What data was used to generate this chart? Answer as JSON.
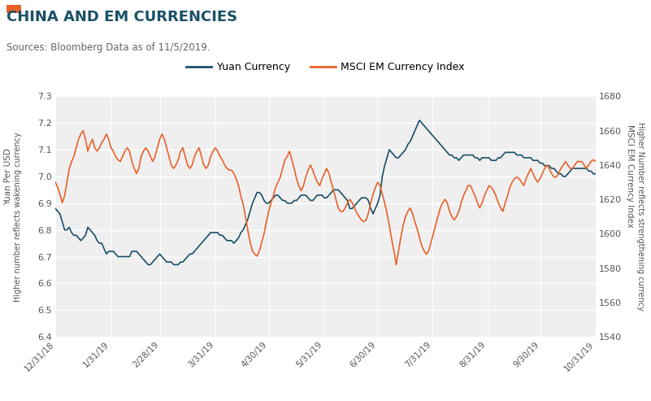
{
  "title": "CHINA AND EM CURRENCIES",
  "subtitle": "Sources: Bloomberg Data as of 11/5/2019.",
  "title_color": "#1a5068",
  "subtitle_color": "#666666",
  "accent_color": "#e8622a",
  "yuan_color": "#1a5068",
  "msci_color": "#e8622a",
  "yuan_label": "Yuan Currency",
  "msci_label": "MSCI EM Currency Index",
  "left_ylabel_top": "Yuan Per USD",
  "left_ylabel_bot": "Higher number reflects wakening currency",
  "right_ylabel_top": "MSCI EM Currency Index",
  "right_ylabel_bot": "Higher Number reflects strengthening currency",
  "ylim_left": [
    6.4,
    7.3
  ],
  "ylim_right": [
    1540,
    1680
  ],
  "yticks_left": [
    6.4,
    6.5,
    6.6,
    6.7,
    6.8,
    6.9,
    7.0,
    7.1,
    7.2,
    7.3
  ],
  "yticks_right": [
    1540,
    1560,
    1580,
    1600,
    1620,
    1640,
    1660,
    1680
  ],
  "xtick_labels": [
    "12/31/18",
    "1/31/19",
    "2/28/19",
    "3/31/19",
    "4/30/19",
    "5/31/19",
    "6/30/19",
    "7/31/19",
    "8/31/19",
    "9/30/19",
    "10/31/19"
  ],
  "plot_bg": "#efefef",
  "fig_bg": "#ffffff",
  "grid_color": "#ffffff",
  "yuan_data": [
    6.88,
    6.87,
    6.86,
    6.83,
    6.8,
    6.8,
    6.81,
    6.79,
    6.78,
    6.78,
    6.77,
    6.76,
    6.77,
    6.78,
    6.81,
    6.8,
    6.79,
    6.78,
    6.76,
    6.75,
    6.75,
    6.73,
    6.71,
    6.72,
    6.72,
    6.72,
    6.71,
    6.7,
    6.7,
    6.7,
    6.7,
    6.7,
    6.7,
    6.72,
    6.72,
    6.72,
    6.71,
    6.7,
    6.69,
    6.68,
    6.67,
    6.67,
    6.68,
    6.69,
    6.7,
    6.71,
    6.7,
    6.69,
    6.68,
    6.68,
    6.68,
    6.67,
    6.67,
    6.67,
    6.68,
    6.68,
    6.69,
    6.7,
    6.71,
    6.71,
    6.72,
    6.73,
    6.74,
    6.75,
    6.76,
    6.77,
    6.78,
    6.79,
    6.79,
    6.79,
    6.79,
    6.78,
    6.78,
    6.77,
    6.76,
    6.76,
    6.76,
    6.75,
    6.76,
    6.77,
    6.79,
    6.8,
    6.82,
    6.84,
    6.87,
    6.9,
    6.92,
    6.94,
    6.94,
    6.93,
    6.91,
    6.9,
    6.9,
    6.91,
    6.92,
    6.93,
    6.93,
    6.92,
    6.91,
    6.91,
    6.9,
    6.9,
    6.9,
    6.91,
    6.91,
    6.92,
    6.93,
    6.93,
    6.93,
    6.92,
    6.91,
    6.91,
    6.92,
    6.93,
    6.93,
    6.93,
    6.92,
    6.92,
    6.93,
    6.94,
    6.95,
    6.95,
    6.95,
    6.94,
    6.93,
    6.92,
    6.91,
    6.88,
    6.88,
    6.89,
    6.9,
    6.91,
    6.92,
    6.92,
    6.92,
    6.91,
    6.88,
    6.86,
    6.88,
    6.9,
    6.93,
    7.0,
    7.04,
    7.07,
    7.1,
    7.09,
    7.08,
    7.07,
    7.07,
    7.08,
    7.09,
    7.1,
    7.12,
    7.13,
    7.15,
    7.17,
    7.19,
    7.21,
    7.2,
    7.19,
    7.18,
    7.17,
    7.16,
    7.15,
    7.14,
    7.13,
    7.12,
    7.11,
    7.1,
    7.09,
    7.08,
    7.08,
    7.07,
    7.07,
    7.06,
    7.07,
    7.08,
    7.08,
    7.08,
    7.08,
    7.08,
    7.07,
    7.07,
    7.06,
    7.07,
    7.07,
    7.07,
    7.07,
    7.06,
    7.06,
    7.06,
    7.07,
    7.07,
    7.08,
    7.09,
    7.09,
    7.09,
    7.09,
    7.09,
    7.08,
    7.08,
    7.08,
    7.07,
    7.07,
    7.07,
    7.07,
    7.06,
    7.06,
    7.06,
    7.05,
    7.05,
    7.04,
    7.04,
    7.04,
    7.03,
    7.03,
    7.02,
    7.01,
    7.01,
    7.0,
    7.0,
    7.01,
    7.02,
    7.03,
    7.03,
    7.03,
    7.03,
    7.03,
    7.03,
    7.03,
    7.02,
    7.02,
    7.01,
    7.01,
    7.0
  ],
  "msci_data": [
    1630,
    1627,
    1623,
    1618,
    1622,
    1630,
    1638,
    1642,
    1645,
    1650,
    1655,
    1658,
    1660,
    1655,
    1648,
    1652,
    1655,
    1650,
    1648,
    1650,
    1653,
    1655,
    1658,
    1655,
    1650,
    1648,
    1645,
    1643,
    1642,
    1645,
    1648,
    1650,
    1648,
    1642,
    1638,
    1635,
    1638,
    1645,
    1648,
    1650,
    1648,
    1645,
    1642,
    1645,
    1650,
    1655,
    1658,
    1655,
    1650,
    1645,
    1640,
    1638,
    1640,
    1643,
    1648,
    1650,
    1645,
    1640,
    1638,
    1640,
    1645,
    1648,
    1650,
    1645,
    1640,
    1638,
    1640,
    1645,
    1648,
    1650,
    1648,
    1645,
    1643,
    1640,
    1638,
    1637,
    1637,
    1635,
    1632,
    1628,
    1622,
    1617,
    1610,
    1602,
    1595,
    1590,
    1588,
    1587,
    1590,
    1595,
    1600,
    1607,
    1613,
    1618,
    1622,
    1627,
    1630,
    1633,
    1638,
    1643,
    1645,
    1648,
    1643,
    1638,
    1632,
    1628,
    1625,
    1628,
    1633,
    1637,
    1640,
    1637,
    1633,
    1630,
    1628,
    1632,
    1635,
    1638,
    1635,
    1630,
    1625,
    1620,
    1615,
    1613,
    1613,
    1615,
    1618,
    1620,
    1618,
    1615,
    1612,
    1610,
    1608,
    1607,
    1608,
    1612,
    1618,
    1623,
    1627,
    1630,
    1628,
    1623,
    1618,
    1612,
    1605,
    1597,
    1590,
    1582,
    1590,
    1598,
    1605,
    1610,
    1613,
    1615,
    1612,
    1607,
    1603,
    1598,
    1593,
    1590,
    1588,
    1590,
    1595,
    1600,
    1605,
    1610,
    1615,
    1618,
    1620,
    1618,
    1613,
    1610,
    1608,
    1610,
    1613,
    1618,
    1622,
    1625,
    1628,
    1628,
    1625,
    1622,
    1618,
    1615,
    1618,
    1622,
    1625,
    1628,
    1627,
    1625,
    1622,
    1618,
    1615,
    1613,
    1618,
    1622,
    1627,
    1630,
    1632,
    1633,
    1632,
    1630,
    1628,
    1632,
    1635,
    1638,
    1635,
    1632,
    1630,
    1632,
    1635,
    1638,
    1640,
    1638,
    1635,
    1633,
    1633,
    1635,
    1638,
    1640,
    1642,
    1640,
    1638,
    1638,
    1640,
    1642,
    1642,
    1642,
    1640,
    1638,
    1640,
    1642,
    1643,
    1642
  ]
}
